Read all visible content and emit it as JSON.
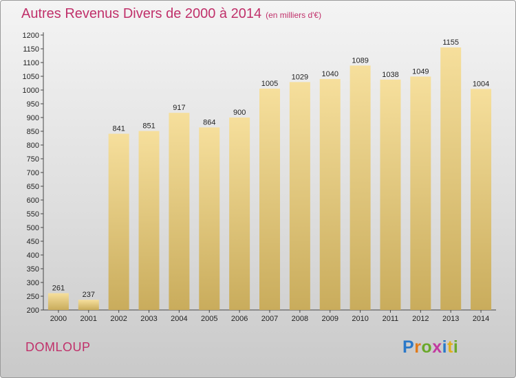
{
  "header": {
    "title": "Autres Revenus Divers de 2000 à 2014",
    "subtitle": "(en milliers d'€)"
  },
  "footer": {
    "commune": "DOMLOUP",
    "logo": [
      "P",
      "r",
      "o",
      "x",
      "i",
      "t",
      "i"
    ]
  },
  "colors": {
    "title": "#c0306a",
    "bar_top": "#f6df9c",
    "bar_bottom": "#c9ac5c"
  },
  "chart_data": {
    "type": "bar",
    "title": "Autres Revenus Divers de 2000 à 2014",
    "subtitle": "(en milliers d'€)",
    "categories": [
      "2000",
      "2001",
      "2002",
      "2003",
      "2004",
      "2005",
      "2006",
      "2007",
      "2008",
      "2009",
      "2010",
      "2011",
      "2012",
      "2013",
      "2014"
    ],
    "values": [
      261,
      237,
      841,
      851,
      917,
      864,
      900,
      1005,
      1029,
      1040,
      1089,
      1038,
      1049,
      1155,
      1004
    ],
    "ylim": [
      200,
      1200
    ],
    "ytick_step": 50,
    "grid": false,
    "legend": "none"
  }
}
